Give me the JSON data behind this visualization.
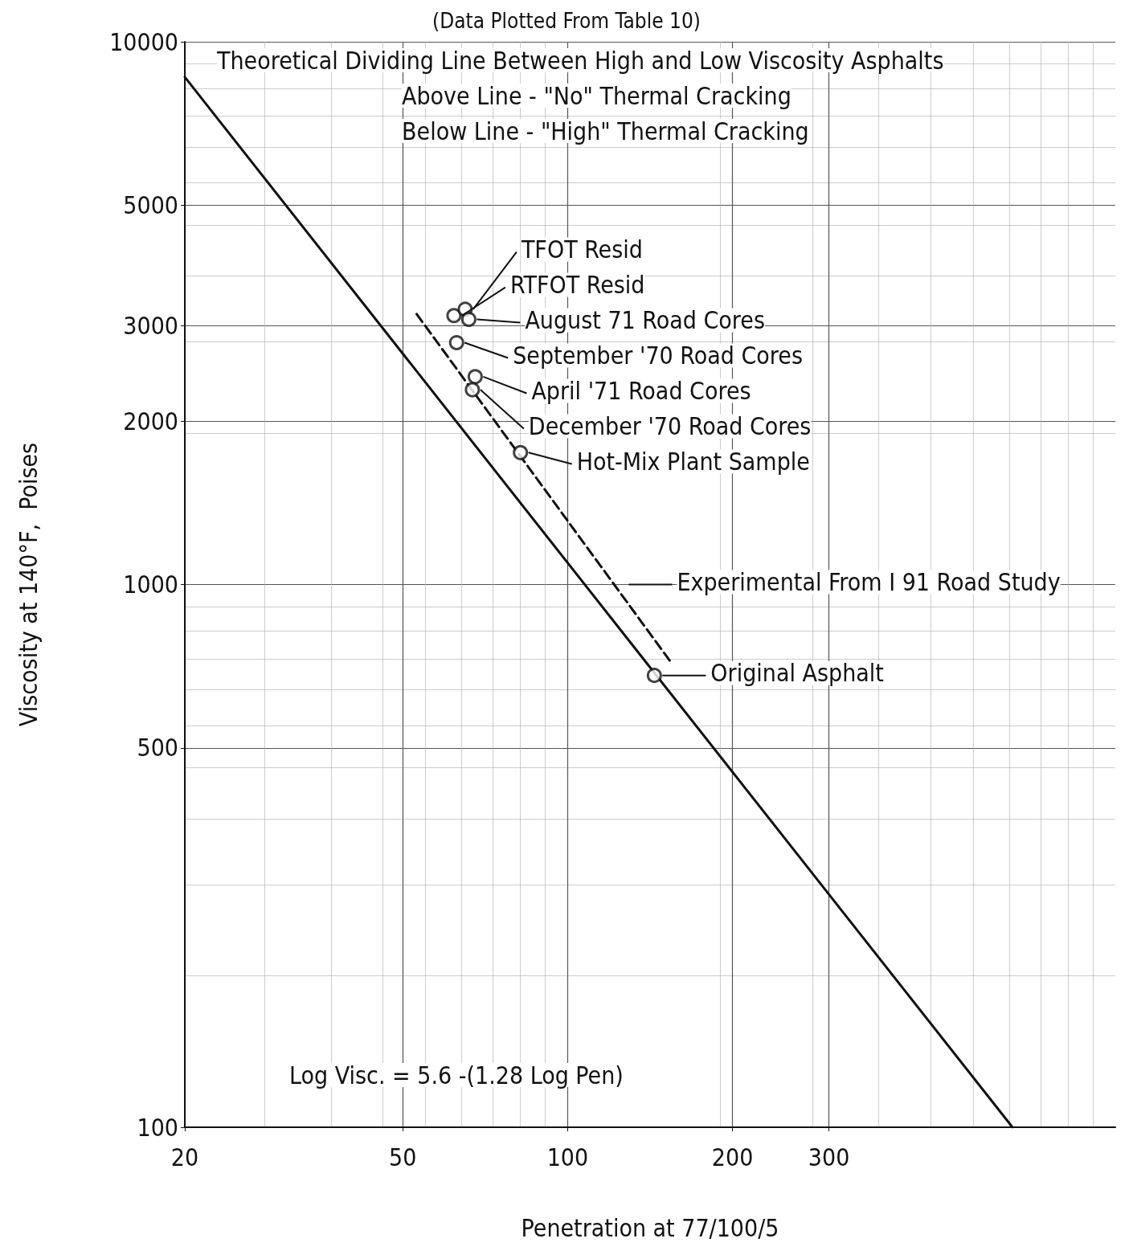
{
  "chart_data": {
    "type": "scatter",
    "title": "(Data Plotted From Table 10)",
    "xlabel": "Penetration at 77/100/5",
    "ylabel": "Viscosity at 140°F,  Poises",
    "log": "xy",
    "xlim": [
      20,
      1000
    ],
    "xticks": [
      20,
      50,
      100,
      200,
      300
    ],
    "ylim": [
      100,
      10000
    ],
    "yticks": [
      100,
      500,
      1000,
      2000,
      3000,
      5000,
      10000
    ],
    "grid": true,
    "legend": false,
    "marker": "circle",
    "series": [
      {
        "color": "#111111",
        "x": [
          62,
          65,
          66,
          62.7,
          67.8,
          67,
          82,
          144
        ],
        "values": [
          3130,
          3215,
          3080,
          2790,
          2415,
          2285,
          1750,
          680
        ]
      },
      {
        "type": "line",
        "color": "#111111",
        "line_style": "solid",
        "marker": "none",
        "x": [
          20,
          649
        ],
        "values": [
          8610,
          100
        ]
      },
      {
        "type": "line",
        "color": "#111111",
        "line_style": "dashed",
        "marker": "none",
        "x": [
          53,
          155
        ],
        "values": [
          3150,
          715
        ]
      }
    ],
    "annotations": [
      "Theoretical Dividing Line Between High and Low Viscosity Asphalts",
      "Above Line - \"No\" Thermal Cracking",
      "Below Line - \"High\" Thermal Cracking",
      {
        "text": "RTFOT Resid",
        "x": 62,
        "y": 3130
      },
      {
        "text": "TFOT Resid",
        "x": 65,
        "y": 3215
      },
      {
        "text": "August 71 Road Cores",
        "x": 66,
        "y": 3080
      },
      {
        "text": "September '70 Road Cores",
        "x": 62.7,
        "y": 2790
      },
      {
        "text": "April '71 Road Cores",
        "x": 67.8,
        "y": 2415
      },
      {
        "text": "December '70 Road Cores",
        "x": 67,
        "y": 2285
      },
      {
        "text": "Hot-Mix Plant Sample",
        "x": 82,
        "y": 1750
      },
      {
        "text": "Experimental From I 91 Road Study",
        "x": 125,
        "y": 1000
      },
      {
        "text": "Original Asphalt",
        "x": 144,
        "y": 680
      },
      "Log Visc. = 5.6 -(1.28 Log Pen)"
    ]
  }
}
